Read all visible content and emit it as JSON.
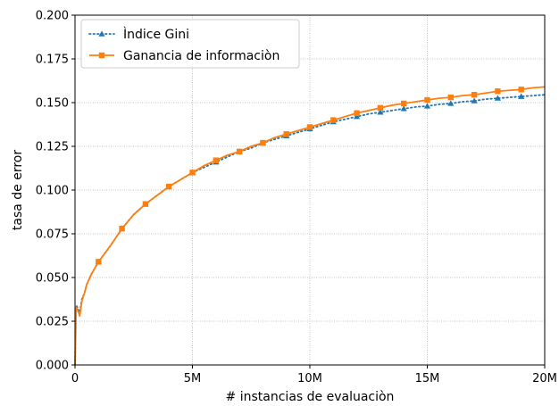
{
  "chart_data": {
    "type": "line",
    "xlabel": "# instancias de evaluaciòn",
    "ylabel": "tasa de error",
    "xlim": [
      0,
      20000000
    ],
    "ylim": [
      0,
      0.2
    ],
    "x_ticks": [
      0,
      5000000,
      10000000,
      15000000,
      20000000
    ],
    "x_tick_labels": [
      "0",
      "5M",
      "10M",
      "15M",
      "20M"
    ],
    "y_ticks": [
      0.0,
      0.025,
      0.05,
      0.075,
      0.1,
      0.125,
      0.15,
      0.175,
      0.2
    ],
    "y_tick_labels": [
      "0.000",
      "0.025",
      "0.050",
      "0.075",
      "0.100",
      "0.125",
      "0.150",
      "0.175",
      "0.200"
    ],
    "grid": true,
    "legend_position": "top-left",
    "series": [
      {
        "name": "Ìndice Gini",
        "color": "#1f77b4",
        "line_style": "dotted",
        "marker": "triangle",
        "x": [
          0,
          50000,
          100000,
          200000,
          300000,
          400000,
          500000,
          700000,
          1000000,
          1500000,
          2000000,
          2500000,
          3000000,
          3500000,
          4000000,
          4500000,
          5000000,
          5500000,
          6000000,
          6500000,
          7000000,
          7500000,
          8000000,
          8500000,
          9000000,
          9500000,
          10000000,
          10500000,
          11000000,
          11500000,
          12000000,
          12500000,
          13000000,
          13500000,
          14000000,
          14500000,
          15000000,
          15500000,
          16000000,
          16500000,
          17000000,
          17500000,
          18000000,
          18500000,
          19000000,
          19500000,
          20000000
        ],
        "y": [
          0.0,
          0.034,
          0.033,
          0.03,
          0.038,
          0.041,
          0.046,
          0.052,
          0.059,
          0.068,
          0.078,
          0.086,
          0.092,
          0.097,
          0.102,
          0.106,
          0.11,
          0.113,
          0.116,
          0.119,
          0.122,
          0.124,
          0.127,
          0.129,
          0.131,
          0.133,
          0.135,
          0.137,
          0.139,
          0.1405,
          0.142,
          0.1435,
          0.1445,
          0.1455,
          0.1465,
          0.1475,
          0.148,
          0.149,
          0.1495,
          0.1505,
          0.151,
          0.152,
          0.1525,
          0.153,
          0.1535,
          0.154,
          0.1545
        ],
        "marker_x": [
          1000000,
          2000000,
          3000000,
          4000000,
          5000000,
          6000000,
          7000000,
          8000000,
          9000000,
          10000000,
          11000000,
          12000000,
          13000000,
          14000000,
          15000000,
          16000000,
          17000000,
          18000000,
          19000000
        ]
      },
      {
        "name": "Ganancia de informaciòn",
        "color": "#ff7f0e",
        "line_style": "solid",
        "marker": "square",
        "x": [
          0,
          50000,
          100000,
          200000,
          300000,
          400000,
          500000,
          700000,
          1000000,
          1500000,
          2000000,
          2500000,
          3000000,
          3500000,
          4000000,
          4500000,
          5000000,
          5500000,
          6000000,
          6500000,
          7000000,
          7500000,
          8000000,
          8500000,
          9000000,
          9500000,
          10000000,
          10500000,
          11000000,
          11500000,
          12000000,
          12500000,
          13000000,
          13500000,
          14000000,
          14500000,
          15000000,
          15500000,
          16000000,
          16500000,
          17000000,
          17500000,
          18000000,
          18500000,
          19000000,
          19500000,
          20000000
        ],
        "y": [
          0.0,
          0.033,
          0.032,
          0.028,
          0.037,
          0.041,
          0.046,
          0.052,
          0.059,
          0.068,
          0.078,
          0.086,
          0.092,
          0.097,
          0.102,
          0.106,
          0.11,
          0.114,
          0.117,
          0.12,
          0.122,
          0.125,
          0.127,
          0.13,
          0.132,
          0.134,
          0.136,
          0.138,
          0.14,
          0.142,
          0.144,
          0.1455,
          0.147,
          0.1485,
          0.1495,
          0.1505,
          0.1515,
          0.1525,
          0.153,
          0.154,
          0.1545,
          0.1555,
          0.1565,
          0.157,
          0.1575,
          0.1585,
          0.159
        ],
        "marker_x": [
          1000000,
          2000000,
          3000000,
          4000000,
          5000000,
          6000000,
          7000000,
          8000000,
          9000000,
          10000000,
          11000000,
          12000000,
          13000000,
          14000000,
          15000000,
          16000000,
          17000000,
          18000000,
          19000000
        ]
      }
    ]
  }
}
